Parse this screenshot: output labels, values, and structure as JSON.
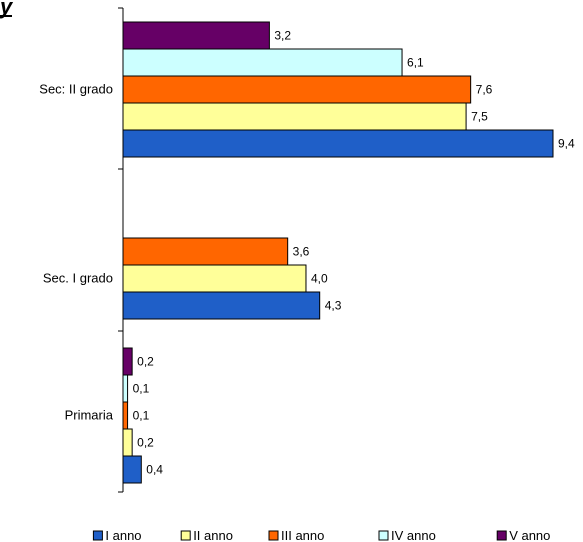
{
  "chart_data": {
    "type": "bar",
    "orientation": "horizontal",
    "title_fragment": "y",
    "categories": [
      "Sec: II grado",
      "Sec. I grado",
      "Primaria"
    ],
    "series": [
      {
        "name": "I anno",
        "color": "#1F5FC8",
        "values": [
          9.4,
          4.3,
          0.4
        ]
      },
      {
        "name": "II anno",
        "color": "#FFFF99",
        "values": [
          7.5,
          4.0,
          0.2
        ]
      },
      {
        "name": "III anno",
        "color": "#FF6600",
        "values": [
          7.6,
          3.6,
          0.1
        ]
      },
      {
        "name": "IV anno",
        "color": "#CCFFFF",
        "values": [
          6.1,
          null,
          0.1
        ]
      },
      {
        "name": "V anno",
        "color": "#660066",
        "values": [
          3.2,
          null,
          0.2
        ]
      }
    ],
    "value_labels": [
      [
        "9,4",
        "4,3",
        "0,4"
      ],
      [
        "7,5",
        "4,0",
        "0,2"
      ],
      [
        "7,6",
        "3,6",
        "0,1"
      ],
      [
        "6,1",
        "",
        "0,1"
      ],
      [
        "3,2",
        "",
        "0,2"
      ]
    ],
    "xlim": [
      0,
      11.6
    ],
    "grid": false,
    "legend_position": "bottom"
  }
}
